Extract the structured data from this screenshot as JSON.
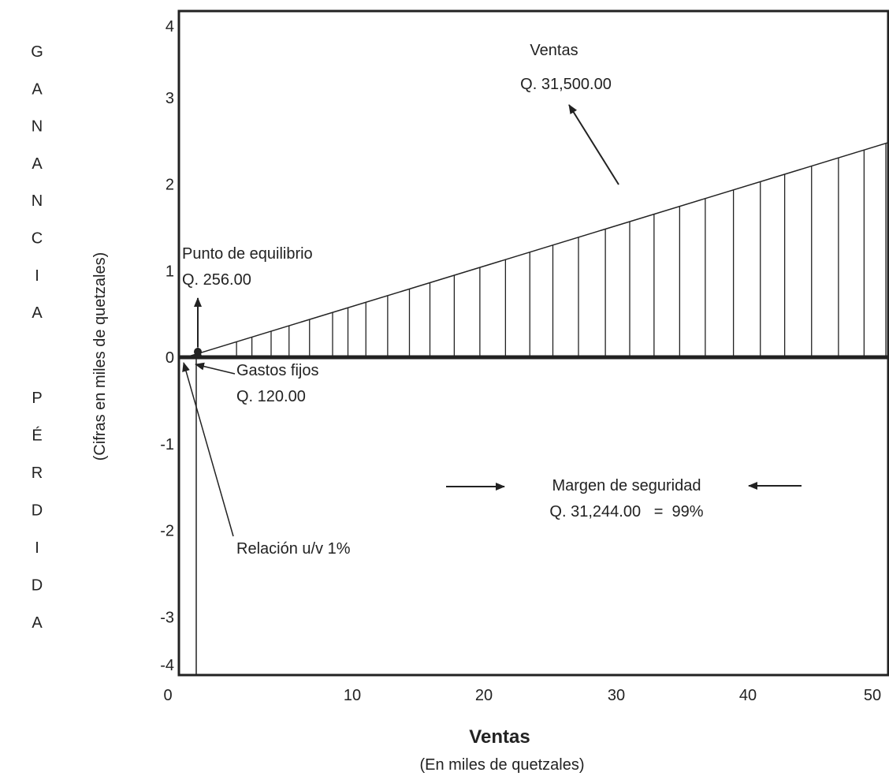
{
  "chart_data": {
    "type": "line",
    "title": "",
    "xlabel": "Ventas",
    "xlabel_sub": "(En miles de quetzales)",
    "ylabel": "(Cifras en miles de quetzales)",
    "side_letters_top": [
      "G",
      "A",
      "N",
      "A",
      "N",
      "C",
      "I",
      "A"
    ],
    "side_letters_bottom": [
      "P",
      "É",
      "R",
      "D",
      "I",
      "D",
      "A"
    ],
    "xlim": [
      0,
      50
    ],
    "ylim": [
      -4,
      4
    ],
    "x_ticks": [
      "0",
      "10",
      "20",
      "30",
      "40",
      "50"
    ],
    "y_ticks": [
      "4",
      "3",
      "2",
      "1",
      "0",
      "-1",
      "-2",
      "-3",
      "-4"
    ],
    "series": [
      {
        "name": "Ventas",
        "x": [
          0.5,
          50
        ],
        "y": [
          0,
          2.48
        ]
      }
    ],
    "hatch_x": [
      4.5,
      5.7,
      7.2,
      8.6,
      10.2,
      12,
      13.2,
      14.6,
      16.3,
      18,
      19.6,
      21.5,
      23.5,
      25.5,
      27.4,
      29.2,
      31.2,
      33.3,
      35.2,
      37.1,
      39.1,
      41.1,
      43.3,
      45.4,
      47.3,
      49.4,
      51.5,
      53.5,
      55.2
    ],
    "annotations": {
      "ventas_line1": "Ventas",
      "ventas_line2": "Q. 31,500.00",
      "equilibrio_line1": "Punto de equilibrio",
      "equilibrio_line2": "Q. 256.00",
      "gastos_line1": "Gastos fijos",
      "gastos_line2": "Q. 120.00",
      "margen_line1": "Margen de seguridad",
      "margen_line2": "Q. 31,244.00   =  99%",
      "relacion": "Relación u/v 1%"
    },
    "grid": false,
    "legend": "none"
  }
}
